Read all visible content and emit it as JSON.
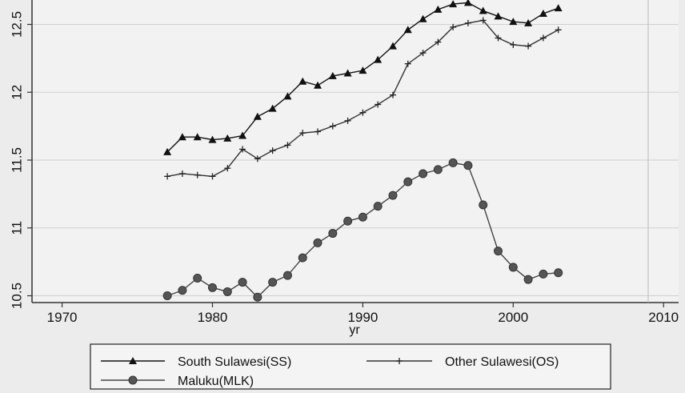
{
  "chart_data": {
    "type": "line",
    "xlabel": "yr",
    "ylabel": "",
    "xlim": [
      1968,
      2011
    ],
    "ylim": [
      10.45,
      12.68
    ],
    "x_ticks": [
      1970,
      1980,
      1990,
      2000,
      2010
    ],
    "y_ticks": [
      10.5,
      11,
      11.5,
      12,
      12.5
    ],
    "x_tick_labels": [
      "1970",
      "1980",
      "1990",
      "2000",
      "2010"
    ],
    "y_tick_labels": [
      "10.5",
      "11",
      "11.5",
      "12",
      "12.5"
    ],
    "grid": "horizontal",
    "legend_position": "bottom",
    "x": [
      1977,
      1978,
      1979,
      1980,
      1981,
      1982,
      1983,
      1984,
      1985,
      1986,
      1987,
      1988,
      1989,
      1990,
      1991,
      1992,
      1993,
      1994,
      1995,
      1996,
      1997,
      1998,
      1999,
      2000,
      2001,
      2002,
      2003
    ],
    "series": [
      {
        "name": "South Sulawesi(SS)",
        "marker": "triangle",
        "values": [
          11.56,
          11.67,
          11.67,
          11.65,
          11.66,
          11.68,
          11.82,
          11.88,
          11.97,
          12.08,
          12.05,
          12.12,
          12.14,
          12.16,
          12.24,
          12.34,
          12.46,
          12.54,
          12.61,
          12.65,
          12.66,
          12.6,
          12.56,
          12.52,
          12.51,
          12.58,
          12.62
        ]
      },
      {
        "name": "Other Sulawesi(OS)",
        "marker": "plus",
        "values": [
          11.38,
          11.4,
          11.39,
          11.38,
          11.44,
          11.58,
          11.51,
          11.57,
          11.61,
          11.7,
          11.71,
          11.75,
          11.79,
          11.85,
          11.91,
          11.98,
          12.21,
          12.29,
          12.37,
          12.48,
          12.51,
          12.53,
          12.4,
          12.35,
          12.34,
          12.4,
          12.46
        ]
      },
      {
        "name": "Maluku(MLK)",
        "marker": "circle",
        "values": [
          10.5,
          10.54,
          10.63,
          10.56,
          10.53,
          10.6,
          10.49,
          10.6,
          10.65,
          10.78,
          10.89,
          10.96,
          11.05,
          11.08,
          11.16,
          11.24,
          11.34,
          11.4,
          11.43,
          11.48,
          11.46,
          11.17,
          10.83,
          10.71,
          10.62,
          10.66,
          10.67
        ]
      }
    ]
  }
}
